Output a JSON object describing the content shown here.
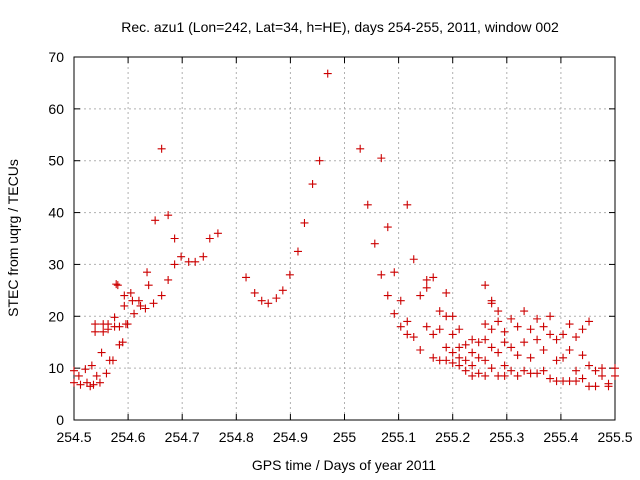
{
  "chart_data": {
    "type": "scatter",
    "title": "Rec. azu1 (Lon=242, Lat=34, h=HE), days 254-255, 2011, window 002",
    "xlabel": "GPS time / Days of year 2011",
    "ylabel": "STEC from uqrg / TECUs",
    "xlim": [
      254.5,
      255.5
    ],
    "ylim": [
      0,
      70
    ],
    "xticks": [
      254.5,
      254.6,
      254.7,
      254.8,
      254.9,
      255.0,
      255.1,
      255.2,
      255.3,
      255.4,
      255.5
    ],
    "xtick_labels": [
      "254.5",
      "254.6",
      "254.7",
      "254.8",
      "254.9",
      "255",
      "255.1",
      "255.2",
      "255.3",
      "255.4",
      "255.5"
    ],
    "yticks": [
      0,
      10,
      20,
      30,
      40,
      50,
      60,
      70
    ],
    "ytick_labels": [
      "0",
      "10",
      "20",
      "30",
      "40",
      "50",
      "60",
      "70"
    ],
    "grid": true,
    "marker": "+",
    "color": "#cc0000",
    "series": [
      {
        "points": [
          [
            254.5,
            9.5
          ],
          [
            254.5,
            7.2
          ],
          [
            254.509,
            8.5
          ],
          [
            254.512,
            6.8
          ],
          [
            254.521,
            9.8
          ],
          [
            254.524,
            7.2
          ],
          [
            254.53,
            6.5
          ],
          [
            254.533,
            10.5
          ],
          [
            254.536,
            6.8
          ],
          [
            254.539,
            18.5
          ],
          [
            254.539,
            17.0
          ],
          [
            254.542,
            8.5
          ],
          [
            254.548,
            7.2
          ],
          [
            254.551,
            13.0
          ],
          [
            254.554,
            18.5
          ],
          [
            254.554,
            17.0
          ],
          [
            254.56,
            9.0
          ],
          [
            254.563,
            18.5
          ],
          [
            254.563,
            17.5
          ],
          [
            254.566,
            11.5
          ],
          [
            254.572,
            11.5
          ],
          [
            254.575,
            18.0
          ],
          [
            254.575,
            19.8
          ],
          [
            254.578,
            26.2
          ],
          [
            254.581,
            26.0
          ],
          [
            254.584,
            14.5
          ],
          [
            254.584,
            18.0
          ],
          [
            254.59,
            15.0
          ],
          [
            254.593,
            24.0
          ],
          [
            254.593,
            22.0
          ],
          [
            254.596,
            18.5
          ],
          [
            254.599,
            18.5
          ],
          [
            254.605,
            24.5
          ],
          [
            254.608,
            23.0
          ],
          [
            254.611,
            20.5
          ],
          [
            254.62,
            23.0
          ],
          [
            254.623,
            22.0
          ],
          [
            254.632,
            21.5
          ],
          [
            254.635,
            28.5
          ],
          [
            254.638,
            26.0
          ],
          [
            254.647,
            22.5
          ],
          [
            254.65,
            38.5
          ],
          [
            254.662,
            52.3
          ],
          [
            254.662,
            24.0
          ],
          [
            254.674,
            39.5
          ],
          [
            254.674,
            27.0
          ],
          [
            254.686,
            35.0
          ],
          [
            254.686,
            30.0
          ],
          [
            254.698,
            31.5
          ],
          [
            254.712,
            30.5
          ],
          [
            254.724,
            30.5
          ],
          [
            254.739,
            31.5
          ],
          [
            254.751,
            35.0
          ],
          [
            254.766,
            36.0
          ],
          [
            254.818,
            27.5
          ],
          [
            254.834,
            24.5
          ],
          [
            254.847,
            23.0
          ],
          [
            254.859,
            22.5
          ],
          [
            254.874,
            23.5
          ],
          [
            254.886,
            25.0
          ],
          [
            254.899,
            28.0
          ],
          [
            254.914,
            32.5
          ],
          [
            254.926,
            38.0
          ],
          [
            254.941,
            45.5
          ],
          [
            254.954,
            50.0
          ],
          [
            254.969,
            66.8
          ],
          [
            255.029,
            52.3
          ],
          [
            255.043,
            41.5
          ],
          [
            255.056,
            34.0
          ],
          [
            255.068,
            50.5
          ],
          [
            255.068,
            28.0
          ],
          [
            255.08,
            37.2
          ],
          [
            255.08,
            24.0
          ],
          [
            255.092,
            28.5
          ],
          [
            255.092,
            20.5
          ],
          [
            255.104,
            23.0
          ],
          [
            255.104,
            18.0
          ],
          [
            255.116,
            41.5
          ],
          [
            255.116,
            19.0
          ],
          [
            255.116,
            16.5
          ],
          [
            255.128,
            31.0
          ],
          [
            255.128,
            16.0
          ],
          [
            255.14,
            24.0
          ],
          [
            255.14,
            13.5
          ],
          [
            255.152,
            25.5
          ],
          [
            255.152,
            27.0
          ],
          [
            255.152,
            18.0
          ],
          [
            255.164,
            27.5
          ],
          [
            255.164,
            16.5
          ],
          [
            255.164,
            12.0
          ],
          [
            255.176,
            21.0
          ],
          [
            255.176,
            17.5
          ],
          [
            255.176,
            11.5
          ],
          [
            255.188,
            24.5
          ],
          [
            255.188,
            20.0
          ],
          [
            255.188,
            14.0
          ],
          [
            255.188,
            11.5
          ],
          [
            255.2,
            20.0
          ],
          [
            255.2,
            16.5
          ],
          [
            255.2,
            13.0
          ],
          [
            255.2,
            11.0
          ],
          [
            255.212,
            17.5
          ],
          [
            255.212,
            14.0
          ],
          [
            255.212,
            12.0
          ],
          [
            255.212,
            10.5
          ],
          [
            255.224,
            14.5
          ],
          [
            255.224,
            11.5
          ],
          [
            255.224,
            9.5
          ],
          [
            255.236,
            15.5
          ],
          [
            255.236,
            13.0
          ],
          [
            255.236,
            10.5
          ],
          [
            255.236,
            8.5
          ],
          [
            255.248,
            15.0
          ],
          [
            255.248,
            12.0
          ],
          [
            255.248,
            9.0
          ],
          [
            255.26,
            26.0
          ],
          [
            255.26,
            18.5
          ],
          [
            255.26,
            15.5
          ],
          [
            255.26,
            11.5
          ],
          [
            255.26,
            8.5
          ],
          [
            255.272,
            23.0
          ],
          [
            255.272,
            22.5
          ],
          [
            255.272,
            17.5
          ],
          [
            255.272,
            14.0
          ],
          [
            255.272,
            10.0
          ],
          [
            255.284,
            21.0
          ],
          [
            255.284,
            19.0
          ],
          [
            255.284,
            13.0
          ],
          [
            255.284,
            8.5
          ],
          [
            255.296,
            17.0
          ],
          [
            255.296,
            15.0
          ],
          [
            255.296,
            10.5
          ],
          [
            255.296,
            8.5
          ],
          [
            255.308,
            19.5
          ],
          [
            255.308,
            14.0
          ],
          [
            255.308,
            9.5
          ],
          [
            255.32,
            18.0
          ],
          [
            255.32,
            12.5
          ],
          [
            255.32,
            8.5
          ],
          [
            255.332,
            21.0
          ],
          [
            255.332,
            15.0
          ],
          [
            255.332,
            9.5
          ],
          [
            255.344,
            17.5
          ],
          [
            255.344,
            12.0
          ],
          [
            255.344,
            9.0
          ],
          [
            255.356,
            19.5
          ],
          [
            255.356,
            15.5
          ],
          [
            255.356,
            9.0
          ],
          [
            255.368,
            18.0
          ],
          [
            255.368,
            13.5
          ],
          [
            255.368,
            9.5
          ],
          [
            255.38,
            20.0
          ],
          [
            255.38,
            16.5
          ],
          [
            255.38,
            8.0
          ],
          [
            255.392,
            15.5
          ],
          [
            255.392,
            11.5
          ],
          [
            255.392,
            7.5
          ],
          [
            255.404,
            16.5
          ],
          [
            255.404,
            12.0
          ],
          [
            255.404,
            7.5
          ],
          [
            255.416,
            18.5
          ],
          [
            255.416,
            13.5
          ],
          [
            255.416,
            7.5
          ],
          [
            255.428,
            16.0
          ],
          [
            255.428,
            9.5
          ],
          [
            255.428,
            7.5
          ],
          [
            255.44,
            17.5
          ],
          [
            255.44,
            12.5
          ],
          [
            255.44,
            8.0
          ],
          [
            255.452,
            19.0
          ],
          [
            255.452,
            10.5
          ],
          [
            255.452,
            6.5
          ],
          [
            255.464,
            9.5
          ],
          [
            255.464,
            6.5
          ],
          [
            255.476,
            10.0
          ],
          [
            255.476,
            8.5
          ],
          [
            255.488,
            6.5
          ],
          [
            255.488,
            7.0
          ],
          [
            255.5,
            10.0
          ],
          [
            255.5,
            8.5
          ]
        ]
      }
    ]
  }
}
